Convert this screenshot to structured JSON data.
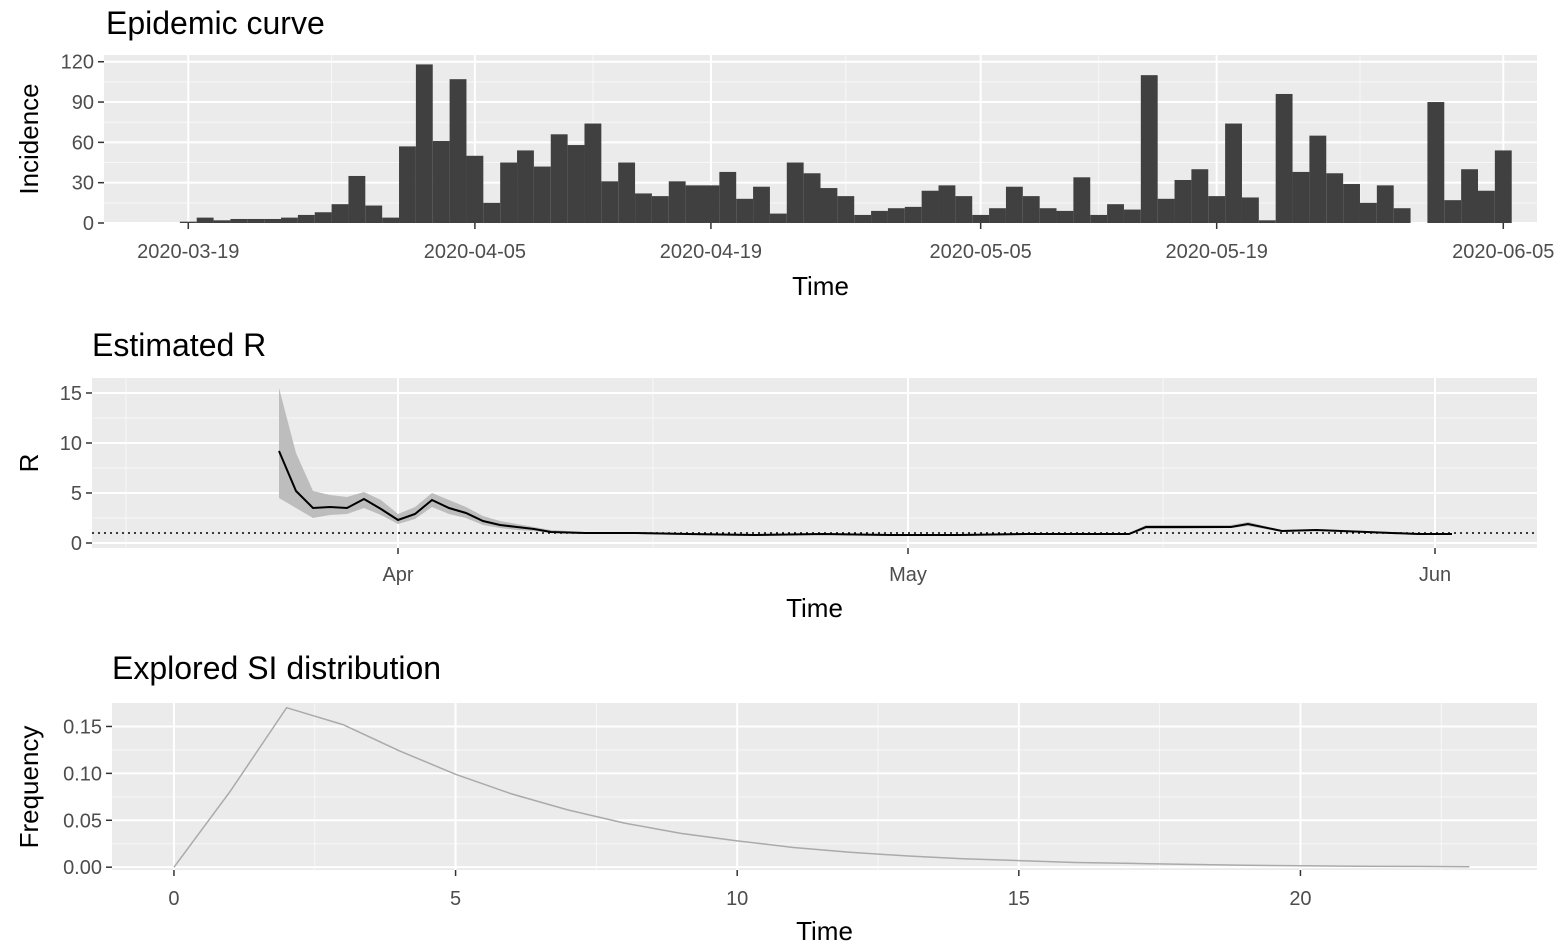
{
  "chart_data": [
    {
      "type": "bar",
      "title": "Epidemic curve",
      "xlabel": "Time",
      "ylabel": "Incidence",
      "x_ticks": [
        "2020-03-19",
        "2020-04-05",
        "2020-04-19",
        "2020-05-05",
        "2020-05-19",
        "2020-06-05"
      ],
      "y_ticks": [
        "0",
        "30",
        "60",
        "90",
        "120"
      ],
      "ylim": [
        0,
        125
      ],
      "xlim": [
        "2020-03-14",
        "2020-06-07"
      ],
      "bar_color": "#404040",
      "grid": true,
      "start_date": "2020-03-19",
      "values": [
        1,
        4,
        2,
        3,
        3,
        3,
        4,
        6,
        8,
        14,
        35,
        13,
        4,
        57,
        118,
        61,
        107,
        50,
        15,
        45,
        54,
        42,
        66,
        58,
        74,
        31,
        45,
        22,
        20,
        31,
        28,
        28,
        38,
        18,
        27,
        7,
        45,
        37,
        26,
        20,
        6,
        9,
        11,
        12,
        24,
        28,
        20,
        6,
        11,
        27,
        20,
        11,
        9,
        34,
        6,
        14,
        10,
        110,
        18,
        32,
        40,
        20,
        74,
        19,
        2,
        96,
        38,
        65,
        37,
        29,
        15,
        28,
        11,
        0,
        90,
        17,
        40,
        24,
        54
      ]
    },
    {
      "type": "line",
      "title": "Estimated R",
      "xlabel": "Time",
      "ylabel": "R",
      "x_ticks": [
        "Apr",
        "May",
        "Jun"
      ],
      "y_ticks": [
        "0",
        "5",
        "10",
        "15"
      ],
      "ylim": [
        -0.5,
        16.5
      ],
      "xlim": [
        "2020-03-14",
        "2020-06-07"
      ],
      "reference_line": 1,
      "line_color": "#000000",
      "band_color": "#bdbdbd",
      "grid": true,
      "series": [
        {
          "x": [
            "2020-03-25",
            "2020-03-26",
            "2020-03-27",
            "2020-03-28",
            "2020-03-29",
            "2020-03-30",
            "2020-03-31",
            "2020-04-01",
            "2020-04-02",
            "2020-04-03",
            "2020-04-04",
            "2020-04-05",
            "2020-04-06",
            "2020-04-07",
            "2020-04-08",
            "2020-04-09",
            "2020-04-10",
            "2020-04-12",
            "2020-04-15",
            "2020-04-18",
            "2020-04-22",
            "2020-04-26",
            "2020-04-30",
            "2020-05-04",
            "2020-05-08",
            "2020-05-12",
            "2020-05-14",
            "2020-05-15",
            "2020-05-17",
            "2020-05-20",
            "2020-05-21",
            "2020-05-23",
            "2020-05-25",
            "2020-05-28",
            "2020-05-31",
            "2020-06-02"
          ],
          "values": [
            9.2,
            5.2,
            3.5,
            3.6,
            3.5,
            4.4,
            3.4,
            2.3,
            2.9,
            4.3,
            3.5,
            3.0,
            2.2,
            1.8,
            1.6,
            1.4,
            1.1,
            1.0,
            1.0,
            0.9,
            0.8,
            0.9,
            0.8,
            0.8,
            0.9,
            0.9,
            0.9,
            1.6,
            1.6,
            1.6,
            1.9,
            1.2,
            1.3,
            1.1,
            0.9,
            0.9
          ],
          "lower": [
            4.5,
            3.5,
            2.5,
            2.8,
            2.9,
            3.5,
            2.8,
            1.9,
            2.4,
            3.6,
            2.9,
            2.5,
            1.8,
            1.5,
            1.3,
            1.2,
            1.0,
            0.9,
            0.9,
            0.8,
            0.7,
            0.8,
            0.7,
            0.7,
            0.8,
            0.8,
            0.8,
            1.4,
            1.4,
            1.5,
            1.7,
            1.1,
            1.2,
            1.0,
            0.8,
            0.8
          ],
          "upper": [
            15.5,
            9.0,
            5.2,
            4.8,
            4.6,
            5.1,
            4.3,
            2.9,
            3.6,
            5.0,
            4.3,
            3.6,
            2.7,
            2.2,
            1.9,
            1.6,
            1.3,
            1.1,
            1.1,
            1.0,
            0.9,
            1.0,
            0.9,
            0.9,
            1.0,
            1.0,
            1.0,
            1.8,
            1.8,
            1.8,
            2.1,
            1.3,
            1.4,
            1.2,
            1.0,
            1.0
          ]
        }
      ]
    },
    {
      "type": "line",
      "title": "Explored SI distribution",
      "xlabel": "Time",
      "ylabel": "Frequency",
      "x_ticks": [
        "0",
        "5",
        "10",
        "15",
        "20"
      ],
      "y_ticks": [
        "0.00",
        "0.05",
        "0.10",
        "0.15"
      ],
      "xlim": [
        -1.1,
        24.2
      ],
      "ylim": [
        -0.003,
        0.175
      ],
      "line_color": "#aaaaaa",
      "grid": true,
      "series": [
        {
          "x": [
            0,
            1,
            2,
            3,
            4,
            5,
            6,
            7,
            8,
            9,
            10,
            11,
            12,
            13,
            14,
            15,
            16,
            17,
            18,
            19,
            20,
            21,
            22,
            23
          ],
          "values": [
            0.0,
            0.081,
            0.17,
            0.152,
            0.124,
            0.099,
            0.078,
            0.061,
            0.047,
            0.036,
            0.028,
            0.021,
            0.016,
            0.012,
            0.009,
            0.007,
            0.005,
            0.004,
            0.003,
            0.002,
            0.0015,
            0.001,
            0.0008,
            0.0005
          ]
        }
      ]
    }
  ]
}
